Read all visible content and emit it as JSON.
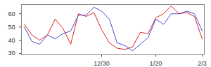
{
  "chart_data": {
    "type": "line",
    "categories": [
      null,
      null,
      null,
      null,
      null,
      null,
      null,
      null,
      null,
      null,
      "12/30",
      null,
      null,
      null,
      null,
      null,
      null,
      "1/20",
      null,
      null,
      null,
      null,
      null,
      "2/3"
    ],
    "series": [
      {
        "color": "#e02020",
        "values": [
          52,
          44,
          40,
          44,
          56,
          49,
          37,
          60,
          58,
          61,
          48,
          38,
          34,
          33,
          35,
          46,
          45,
          57,
          60,
          66,
          60,
          61,
          58,
          41
        ]
      },
      {
        "color": "#4a4ad0",
        "values": [
          50,
          39,
          37,
          44,
          41,
          45,
          47,
          59,
          59,
          65,
          62,
          56,
          38,
          36,
          32,
          37,
          42,
          56,
          52,
          60,
          60,
          62,
          60,
          47
        ]
      }
    ],
    "ylim": [
      29,
      67
    ],
    "yticks": [
      30,
      40,
      50,
      60
    ],
    "grid": false
  }
}
